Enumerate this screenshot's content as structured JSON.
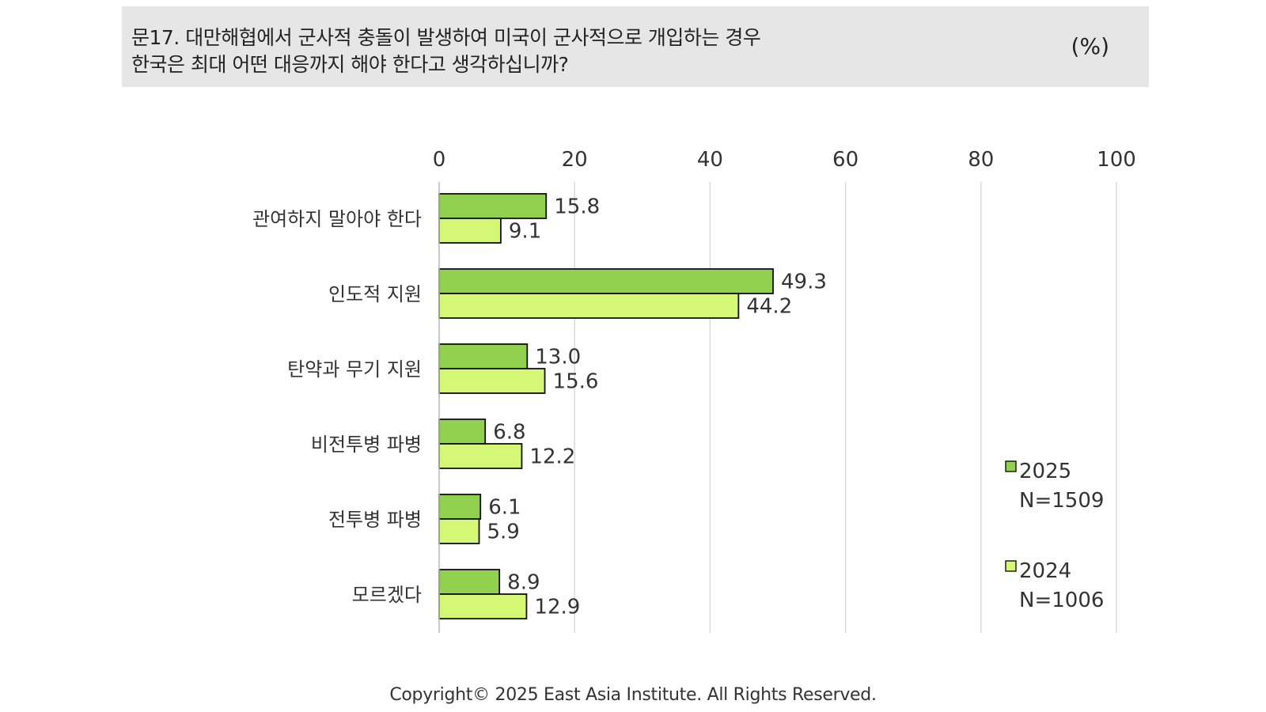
{
  "question": {
    "line1": "문17. 대만해협에서 군사적 충돌이 발생하여 미국이 군사적으로 개입하는 경우",
    "line2": "한국은 최대 어떤 대응까지 해야 한다고 생각하십니까?",
    "unit": "(%)"
  },
  "chart_data": {
    "type": "bar",
    "orientation": "horizontal",
    "categories": [
      "관여하지 말아야 한다",
      "인도적 지원",
      "탄약과 무기 지원",
      "비전투병 파병",
      "전투병 파병",
      "모르겠다"
    ],
    "series": [
      {
        "name": "2025",
        "sample": "N=1509",
        "color": "#92d050",
        "values": [
          15.8,
          49.3,
          13.0,
          6.8,
          6.1,
          8.9
        ],
        "labels": [
          "15.8",
          "49.3",
          "13.0",
          "6.8",
          "6.1",
          "8.9"
        ]
      },
      {
        "name": "2024",
        "sample": "N=1006",
        "color": "#d4f776",
        "values": [
          9.1,
          44.2,
          15.6,
          12.2,
          5.9,
          12.9
        ],
        "labels": [
          "9.1",
          "44.2",
          "15.6",
          "12.2",
          "5.9",
          "12.9"
        ]
      }
    ],
    "xlim": [
      0,
      100
    ],
    "xticks": [
      "0",
      "20",
      "40",
      "60",
      "80",
      "100"
    ],
    "grid": true,
    "axis_position": "top",
    "legend_position": "right"
  },
  "footer": "Copyright© 2025 East Asia Institute. All Rights Reserved."
}
